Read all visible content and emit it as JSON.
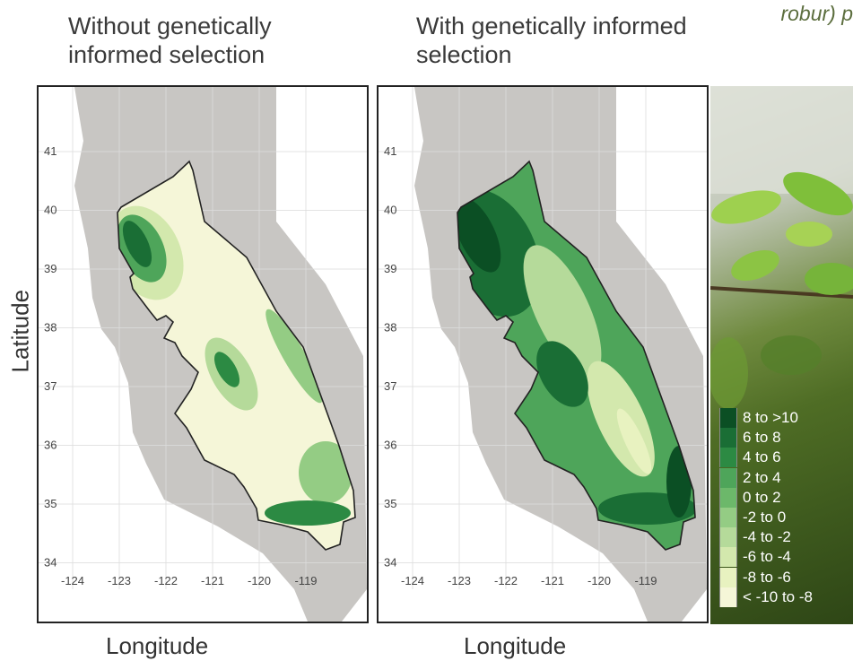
{
  "titles": {
    "left": "Without genetically informed selection",
    "right": "With genetically informed selection",
    "top_right_note_italic": "robur",
    "top_right_note_rest": ") p"
  },
  "axes": {
    "ylabel": "Latitude",
    "xlabel": "Longitude"
  },
  "colors": {
    "c8to10": "#0b4f24",
    "c6to8": "#1a6e35",
    "c4to6": "#2c8a43",
    "c2to4": "#4ea55a",
    "c0to2": "#6cb86a",
    "cm2to0": "#94cc84",
    "cm4tom2": "#b5da9a",
    "cm6tom4": "#d3e8ad",
    "cm8tom6": "#e8f2c0",
    "cm10tom8": "#f5f6d8",
    "terrain": "#c8c6c3",
    "grid": "#dddddd",
    "border": "#222222"
  },
  "chart_data": [
    {
      "type": "heatmap",
      "panel": "Without genetically informed selection",
      "xlabel": "Longitude",
      "ylabel": "Latitude",
      "xticks": [
        "-124",
        "-123",
        "-122",
        "-121",
        "-120",
        "-119"
      ],
      "yticks": [
        "41",
        "40",
        "39",
        "38",
        "37",
        "36",
        "35",
        "34"
      ],
      "xlim": [
        -124.6,
        -118.2
      ],
      "ylim": [
        33.6,
        42.1
      ],
      "grid": true,
      "dominant_class": "< -10 to -8"
    },
    {
      "type": "heatmap",
      "panel": "With genetically informed selection",
      "xlabel": "Longitude",
      "ylabel": "Latitude",
      "xticks": [
        "-124",
        "-123",
        "-122",
        "-121",
        "-120",
        "-119"
      ],
      "yticks": [
        "41",
        "40",
        "39",
        "38",
        "37",
        "36",
        "35",
        "34"
      ],
      "xlim": [
        -124.6,
        -118.2
      ],
      "ylim": [
        33.6,
        42.1
      ],
      "grid": true,
      "dominant_class": "2 to 4"
    }
  ],
  "legend": {
    "placement": "bottom-right",
    "items": [
      {
        "label": "8 to >10",
        "color": "#0b4f24"
      },
      {
        "label": "6 to 8",
        "color": "#1a6e35"
      },
      {
        "label": "4 to 6",
        "color": "#2c8a43"
      },
      {
        "label": "2 to 4",
        "color": "#4ea55a"
      },
      {
        "label": "0 to 2",
        "color": "#6cb86a"
      },
      {
        "label": "-2 to 0",
        "color": "#94cc84"
      },
      {
        "label": "-4 to -2",
        "color": "#b5da9a"
      },
      {
        "label": "-6 to -4",
        "color": "#d3e8ad"
      },
      {
        "label": "-8 to -6",
        "color": "#e8f2c0"
      },
      {
        "label": "< -10 to -8",
        "color": "#f5f6d8"
      }
    ]
  }
}
